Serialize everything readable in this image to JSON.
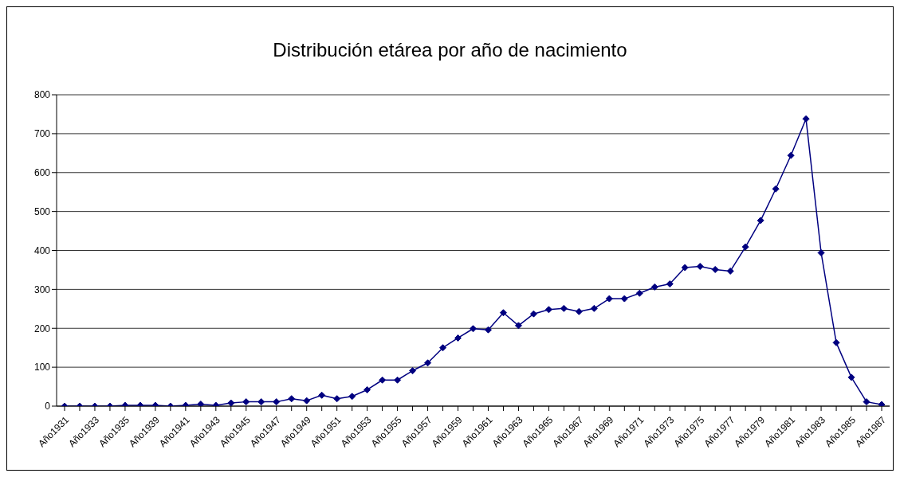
{
  "chart_data": {
    "type": "line",
    "title": "Distribución etárea por año de nacimiento",
    "categories": [
      "Año1931",
      null,
      "Año1933",
      null,
      "Año1935",
      null,
      "Año1939",
      null,
      "Año1941",
      null,
      "Año1943",
      null,
      "Año1945",
      null,
      "Año1947",
      null,
      "Año1949",
      null,
      "Año1951",
      null,
      "Año1953",
      null,
      "Año1955",
      null,
      "Año1957",
      null,
      "Año1959",
      null,
      "Año1961",
      null,
      "Año1963",
      null,
      "Año1965",
      null,
      "Año1967",
      null,
      "Año1969",
      null,
      "Año1971",
      null,
      "Año1973",
      null,
      "Año1975",
      null,
      "Año1977",
      null,
      "Año1979",
      null,
      "Año1981",
      null,
      "Año1983",
      null,
      "Año1985",
      null,
      "Año1987"
    ],
    "series": [
      {
        "color": "#000080",
        "values": [
          0,
          0,
          0,
          0,
          2,
          2,
          2,
          0,
          2,
          5,
          2,
          8,
          11,
          11,
          11,
          19,
          14,
          28,
          19,
          25,
          42,
          67,
          67,
          91,
          111,
          150,
          175,
          199,
          196,
          240,
          207,
          237,
          248,
          251,
          243,
          251,
          276,
          276,
          290,
          306,
          314,
          356,
          359,
          351,
          347,
          409,
          477,
          558,
          644,
          738,
          394,
          163,
          74,
          11,
          4
        ]
      }
    ],
    "ylim": [
      0,
      800
    ],
    "yticks": [
      0,
      100,
      200,
      300,
      400,
      500,
      600,
      700,
      800
    ],
    "grid": "y",
    "marker": "diamond",
    "line_style": "solid"
  }
}
